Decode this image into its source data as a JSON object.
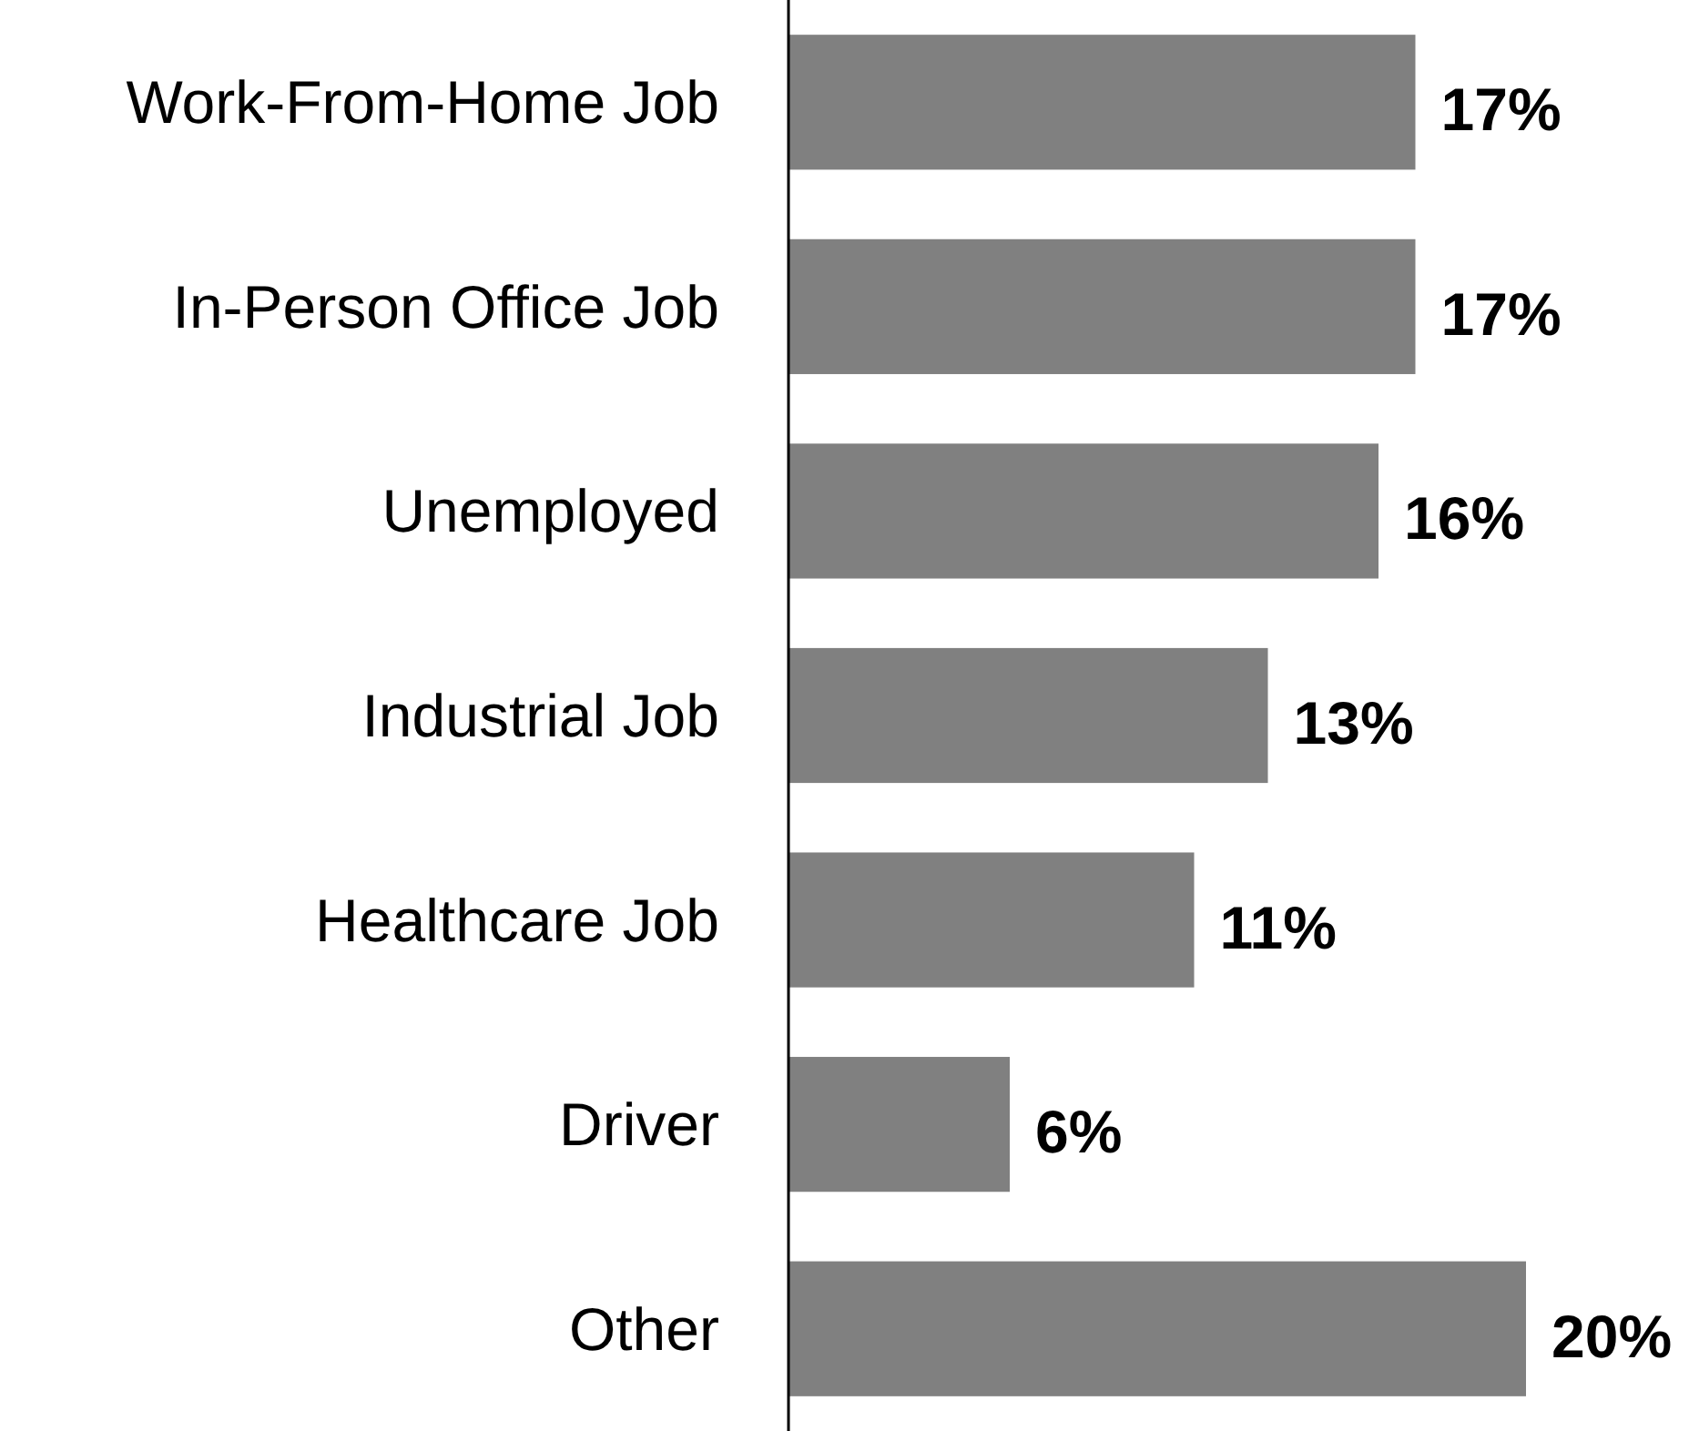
{
  "chart_data": {
    "type": "bar",
    "orientation": "horizontal",
    "categories": [
      "Work-From-Home Job",
      "In-Person Office Job",
      "Unemployed",
      "Industrial Job",
      "Healthcare Job",
      "Driver",
      "Other"
    ],
    "values": [
      17,
      17,
      16,
      13,
      11,
      6,
      20
    ],
    "color": "#808080",
    "data_labels": true,
    "value_labels": [
      "17%",
      "17%",
      "16%",
      "13%",
      "11%",
      "6%",
      "20%"
    ]
  }
}
